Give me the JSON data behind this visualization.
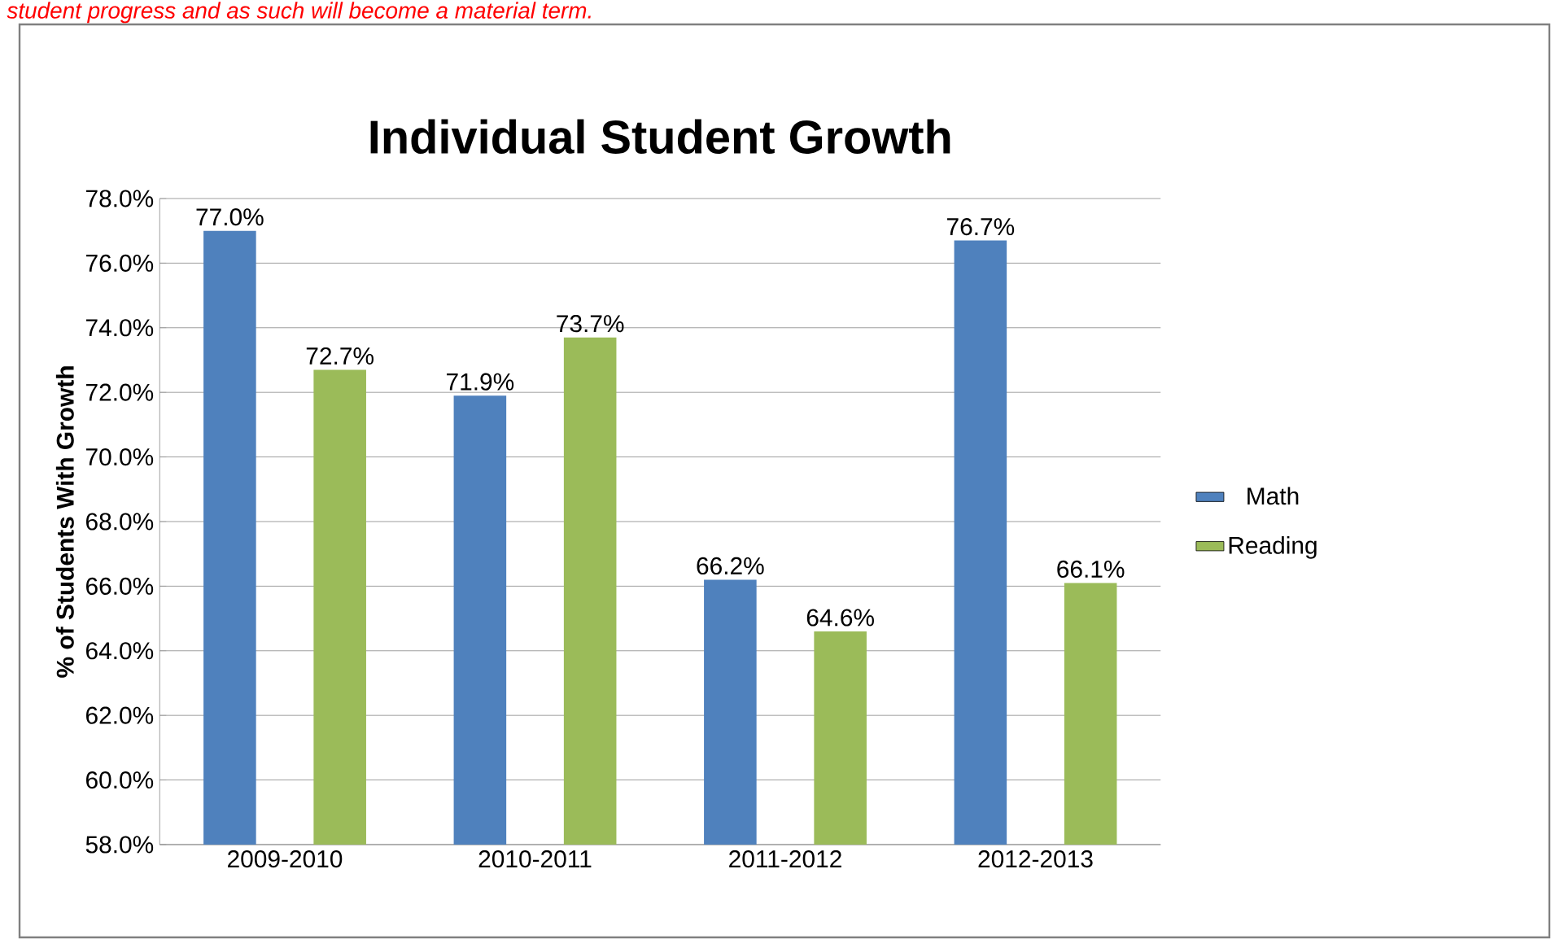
{
  "chart_data": {
    "type": "bar",
    "title": "Individual Student Growth",
    "ylabel": "% of Students With Growth",
    "annotations": [
      "student progress and as such will become a material term."
    ],
    "categories": [
      "2009-2010",
      "2010-2011",
      "2011-2012",
      "2012-2013"
    ],
    "series": [
      {
        "name": "Math",
        "color": "#4f81bd",
        "values": [
          77.0,
          71.9,
          66.2,
          76.7
        ],
        "value_labels": [
          "77.0%",
          "71.9%",
          "66.2%",
          "76.7%"
        ]
      },
      {
        "name": "Reading",
        "color": "#9bbb59",
        "values": [
          72.7,
          73.7,
          64.6,
          66.1
        ],
        "value_labels": [
          "72.7%",
          "73.7%",
          "64.6%",
          "66.1%"
        ]
      }
    ],
    "ylim": [
      58,
      78
    ],
    "yticks": [
      {
        "value": 58,
        "label": "58.0%"
      },
      {
        "value": 60,
        "label": "60.0%"
      },
      {
        "value": 62,
        "label": "62.0%"
      },
      {
        "value": 64,
        "label": "64.0%"
      },
      {
        "value": 66,
        "label": "66.0%"
      },
      {
        "value": 68,
        "label": "68.0%"
      },
      {
        "value": 70,
        "label": "70.0%"
      },
      {
        "value": 72,
        "label": "72.0%"
      },
      {
        "value": 74,
        "label": "74.0%"
      },
      {
        "value": 76,
        "label": "76.0%"
      },
      {
        "value": 78,
        "label": "78.0%"
      }
    ],
    "grid": "y",
    "legend": "right"
  }
}
